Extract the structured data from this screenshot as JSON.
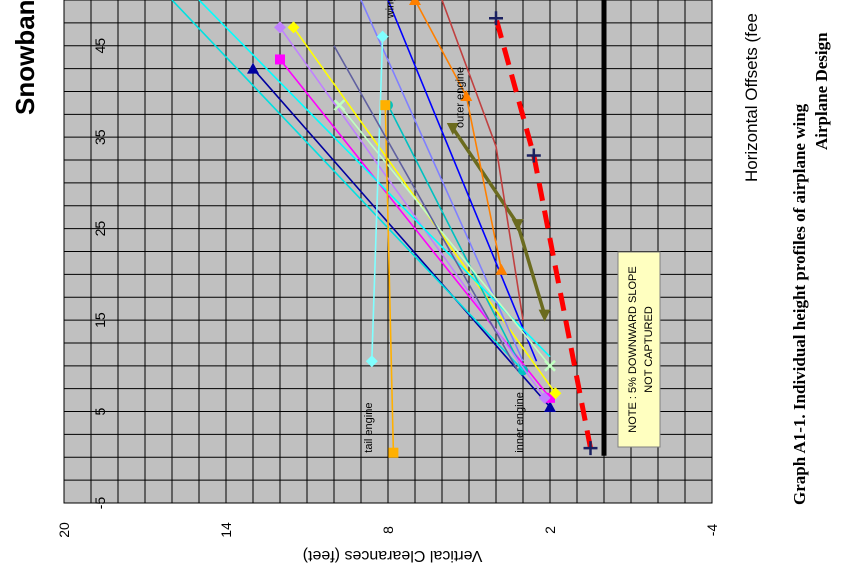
{
  "page": {
    "title_fragment": "Snowban",
    "caption_line_1": "Graph A1-1.  Individual height profiles of airplane wing",
    "caption_line_2": "Airplane Design"
  },
  "chart_data": {
    "type": "line",
    "xlabel": "Horizontal Offsets (fee",
    "ylabel": "Vertical Clearances (feet)",
    "xlim": [
      -5,
      50
    ],
    "ylim": [
      -4,
      20
    ],
    "x_ticks": [
      "-5",
      "5",
      "15",
      "25",
      "35",
      "45"
    ],
    "y_ticks": [
      "20",
      "14",
      "8",
      "2",
      "-4"
    ],
    "grid": true,
    "plot_background": "#c0c0c0",
    "annotations": [
      {
        "text": "tail engine",
        "x": 0.5,
        "y": 8.6
      },
      {
        "text": "inner engine",
        "x": 0.5,
        "y": 3.0
      },
      {
        "text": "outer engine",
        "x": 36,
        "y": 5.2
      },
      {
        "text": "wing",
        "x": 48,
        "y": 7.8
      }
    ],
    "note": {
      "line1": "NOTE : 5%  DOWNWARD SLOPE",
      "line2": "NOT CAPTURED"
    },
    "limit_line": {
      "y": 0.0,
      "color": "#000000"
    },
    "series": [
      {
        "color": "#ff0000",
        "dash": true,
        "marker": "plus",
        "values": [
          [
            1,
            0.5
          ],
          [
            33,
            2.6
          ],
          [
            48,
            4.0
          ]
        ]
      },
      {
        "color": "#6b6b1f",
        "arrow": true,
        "values": [
          [
            15.6,
            2.2
          ],
          [
            25.5,
            3.2
          ],
          [
            36,
            5.6
          ]
        ]
      },
      {
        "color": "#0000a0",
        "marker": "triangle",
        "values": [
          [
            5.5,
            2.0
          ],
          [
            42.5,
            13.0
          ]
        ]
      },
      {
        "color": "#ff00ff",
        "marker": "square",
        "values": [
          [
            6.5,
            2.0
          ],
          [
            43.5,
            12.0
          ]
        ]
      },
      {
        "color": "#ffff00",
        "marker": "diamond",
        "values": [
          [
            7,
            1.8
          ],
          [
            47,
            11.5
          ]
        ]
      },
      {
        "color": "#00c0c0",
        "marker": "circle",
        "values": [
          [
            9.5,
            3.0
          ],
          [
            38.5,
            8.0
          ]
        ]
      },
      {
        "color": "#c080ff",
        "marker": "diamond",
        "values": [
          [
            6.5,
            2.2
          ],
          [
            47,
            12.0
          ]
        ]
      },
      {
        "color": "#00e0e0",
        "values": [
          [
            9.5,
            3.0
          ],
          [
            50,
            16.0
          ]
        ]
      },
      {
        "color": "#0000ff",
        "values": [
          [
            10.5,
            2.5
          ],
          [
            50,
            8.0
          ]
        ]
      },
      {
        "color": "#00ffff",
        "values": [
          [
            11,
            2.0
          ],
          [
            50,
            15.0
          ]
        ]
      },
      {
        "color": "#8080ff",
        "values": [
          [
            10.5,
            3.0
          ],
          [
            50,
            9.0
          ]
        ]
      },
      {
        "color": "#c0ffc0",
        "marker": "x",
        "values": [
          [
            10,
            2.0
          ],
          [
            38.5,
            9.8
          ]
        ]
      },
      {
        "color": "#80ffff",
        "marker": "diamond",
        "values": [
          [
            10.5,
            8.6
          ],
          [
            46,
            8.2
          ]
        ]
      },
      {
        "color": "#ffb000",
        "marker": "square",
        "values": [
          [
            0.5,
            7.8
          ],
          [
            38.5,
            8.1
          ]
        ]
      },
      {
        "color": "#ff8000",
        "marker": "triangle",
        "values": [
          [
            20.5,
            3.8
          ],
          [
            39.5,
            5.1
          ],
          [
            50,
            7.0
          ]
        ]
      },
      {
        "color": "#c04040",
        "values": [
          [
            15,
            3.0
          ],
          [
            34,
            4.0
          ],
          [
            50,
            6.0
          ]
        ]
      },
      {
        "color": "#6060a0",
        "values": [
          [
            9.5,
            3.2
          ],
          [
            45,
            10.0
          ]
        ]
      }
    ]
  }
}
